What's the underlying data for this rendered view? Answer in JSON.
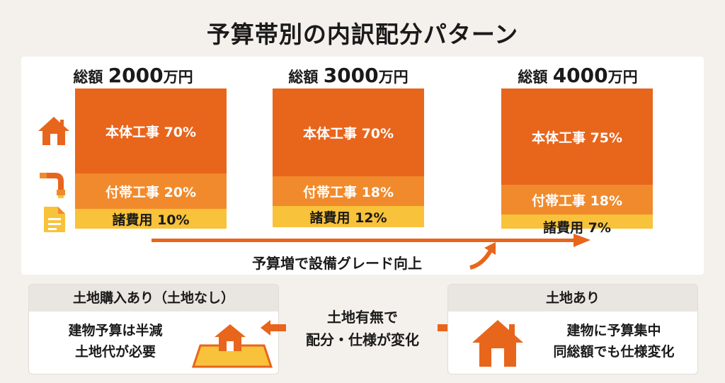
{
  "title": "予算帯別の内訳配分パターン",
  "budgets": [
    {
      "prefix": "総額",
      "amount": "2000",
      "unit": "万円",
      "segments": [
        {
          "label": "本体工事 70%",
          "percent": 70
        },
        {
          "label": "付帯工事 20%",
          "percent": 20
        },
        {
          "label": "諸費用 10%",
          "percent": 10
        }
      ]
    },
    {
      "prefix": "総額",
      "amount": "3000",
      "unit": "万円",
      "segments": [
        {
          "label": "本体工事 70%",
          "percent": 70
        },
        {
          "label": "付帯工事 18%",
          "percent": 18
        },
        {
          "label": "諸費用 12%",
          "percent": 12
        }
      ]
    },
    {
      "prefix": "総額",
      "amount": "4000",
      "unit": "万円",
      "segments": [
        {
          "label": "本体工事 75%",
          "percent": 75
        },
        {
          "label": "付帯工事 18%",
          "percent": 18
        },
        {
          "label": "諸費用 7%",
          "percent": 7
        }
      ]
    }
  ],
  "category_icons": [
    "house-icon",
    "pipe-icon",
    "document-icon"
  ],
  "trend_caption": "予算増で設備グレード向上",
  "land_purchase": {
    "header": "土地購入あり（土地なし）",
    "line1": "建物予算は半減",
    "line2": "土地代が必要",
    "icon": "house-on-land-icon"
  },
  "middle": {
    "line1": "土地有無で",
    "line2": "配分・仕様が変化"
  },
  "land_owned": {
    "header": "土地あり",
    "line1": "建物に予算集中",
    "line2": "同総額でも仕様変化",
    "icon": "house-icon"
  },
  "colors": {
    "main": "#e8651c",
    "sub": "#f18a2c",
    "misc": "#f8c23a",
    "background": "#f4f1ec"
  }
}
